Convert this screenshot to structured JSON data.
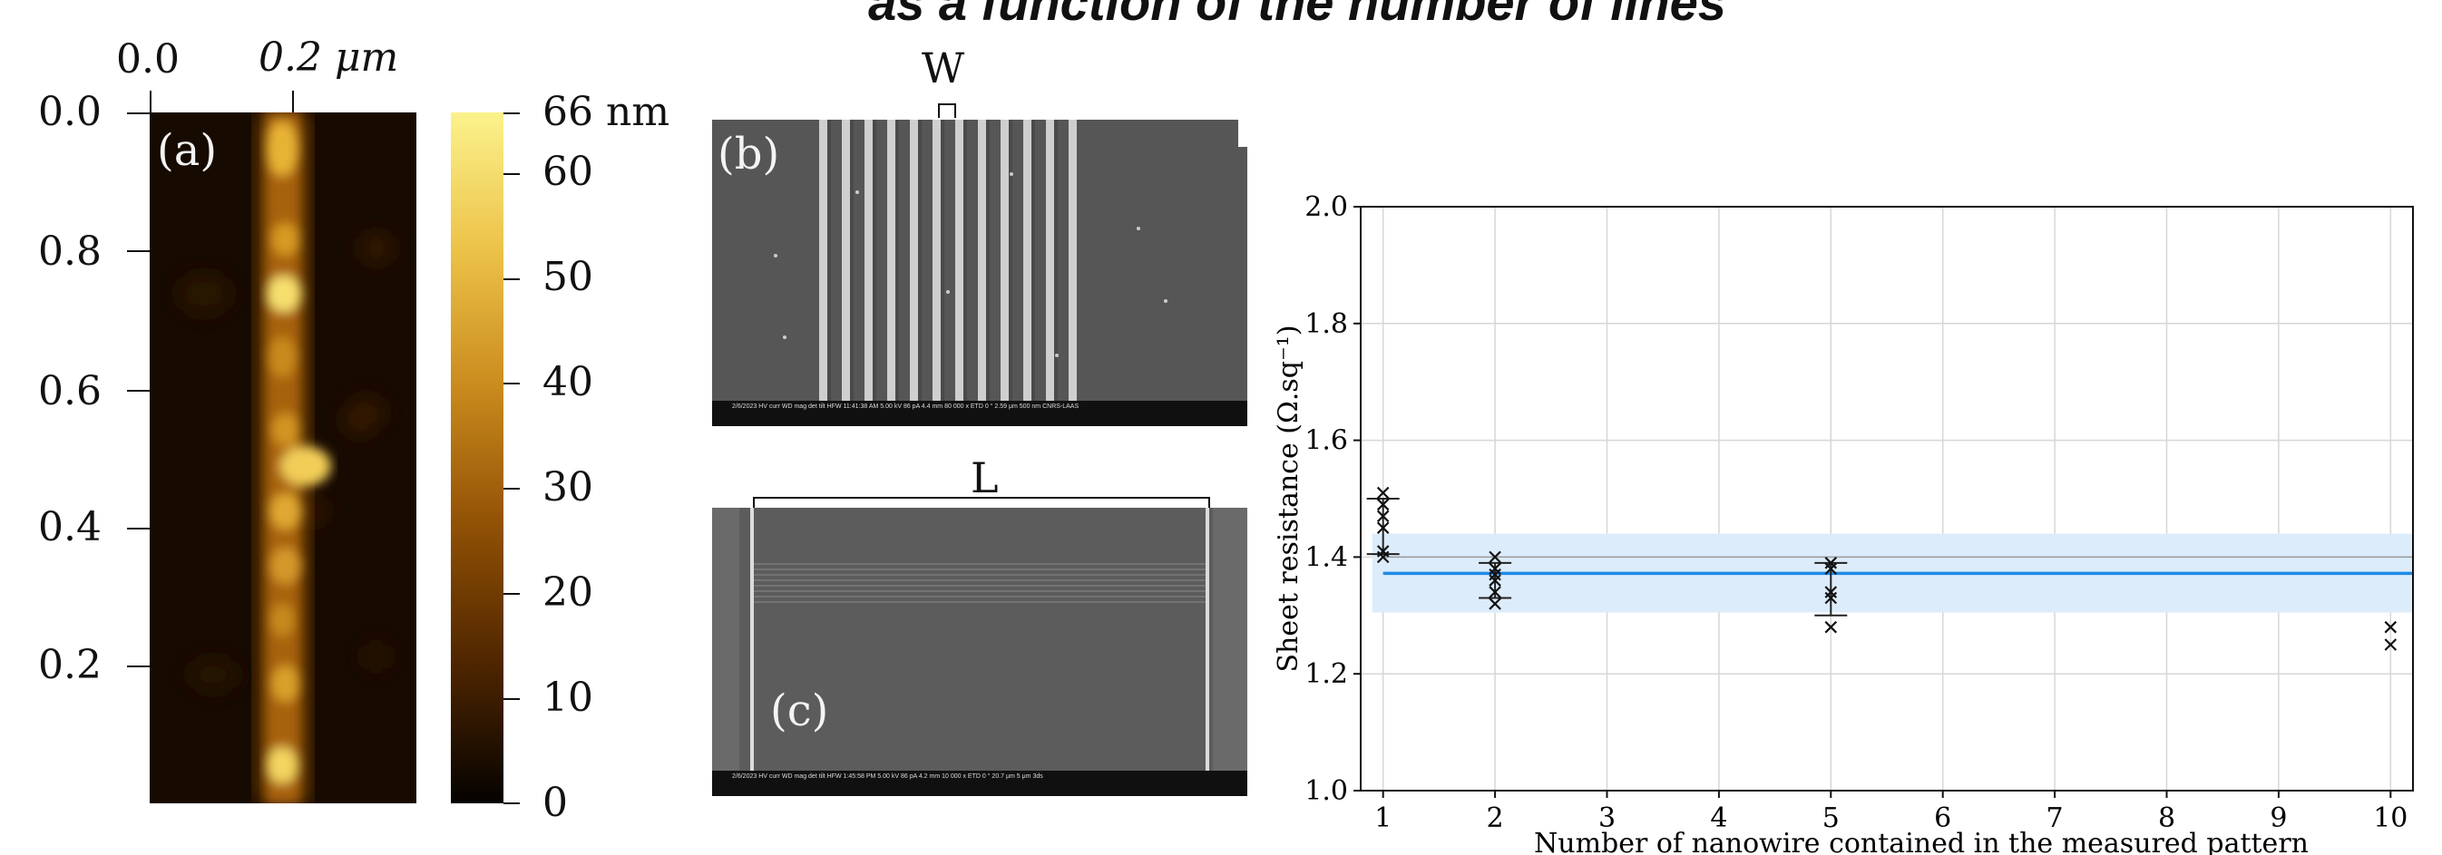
{
  "figure": {
    "caption": "as a function of the number of lines",
    "afm": {
      "panel_label": "(a)",
      "x_ticks": [
        "0.0",
        "0.2 μm"
      ],
      "y_ticks": [
        "0.0",
        "0.8",
        "0.6",
        "0.4",
        "0.2"
      ],
      "colorbar_ticks": [
        "66 nm",
        "60",
        "50",
        "40",
        "30",
        "20",
        "10",
        "0"
      ]
    },
    "sem_b": {
      "panel_label": "(b)",
      "dimension_label": "W",
      "info_bar": "2/6/2023  HV  curr  WD  mag  det  tilt  HFW   11:41:38 AM  5.00 kV  86 pA  4.4 mm  80 000 x  ETD  0 °  2.59 μm   500 nm  CNRS-LAAS"
    },
    "sem_c": {
      "panel_label": "(c)",
      "dimension_label": "L",
      "info_bar": "2/6/2023  HV  curr  WD  mag  det  tilt  HFW   1:45:58 PM  5.00 kV  86 pA  4.2 mm  10 000 x  ETD  0 °  20.7 μm   5 μm  3ds"
    }
  },
  "colors": {
    "fit_line": "#1f8ce8",
    "band": "#dcecfa",
    "grid": "#d6d6d6",
    "mean_line": "#999999"
  },
  "chart_data": {
    "type": "scatter",
    "xlabel": "Number of nanowire contained in the measured pattern",
    "ylabel": "Sheet resistance (Ω.sq⁻¹)",
    "xlim": [
      0.8,
      10.2
    ],
    "ylim": [
      1.0,
      2.0
    ],
    "x_ticks": [
      1,
      2,
      3,
      4,
      5,
      6,
      7,
      8,
      9,
      10
    ],
    "y_ticks": [
      1.0,
      1.2,
      1.4,
      1.6,
      1.8,
      2.0
    ],
    "grid": true,
    "fit": {
      "y": 1.372,
      "band": [
        1.305,
        1.44
      ]
    },
    "mean_line": 1.4,
    "points": [
      {
        "x": 1,
        "y": 1.51
      },
      {
        "x": 1,
        "y": 1.49
      },
      {
        "x": 1,
        "y": 1.47
      },
      {
        "x": 1,
        "y": 1.45
      },
      {
        "x": 1,
        "y": 1.41
      },
      {
        "x": 1,
        "y": 1.4
      },
      {
        "x": 2,
        "y": 1.4
      },
      {
        "x": 2,
        "y": 1.38
      },
      {
        "x": 2,
        "y": 1.37
      },
      {
        "x": 2,
        "y": 1.36
      },
      {
        "x": 2,
        "y": 1.34
      },
      {
        "x": 2,
        "y": 1.32
      },
      {
        "x": 5,
        "y": 1.39
      },
      {
        "x": 5,
        "y": 1.38
      },
      {
        "x": 5,
        "y": 1.34
      },
      {
        "x": 5,
        "y": 1.33
      },
      {
        "x": 5,
        "y": 1.28
      },
      {
        "x": 10,
        "y": 1.28
      },
      {
        "x": 10,
        "y": 1.25
      }
    ],
    "error_bars": [
      {
        "x": 1,
        "low": 1.405,
        "high": 1.5
      },
      {
        "x": 2,
        "low": 1.33,
        "high": 1.39
      },
      {
        "x": 5,
        "low": 1.3,
        "high": 1.39
      }
    ]
  }
}
